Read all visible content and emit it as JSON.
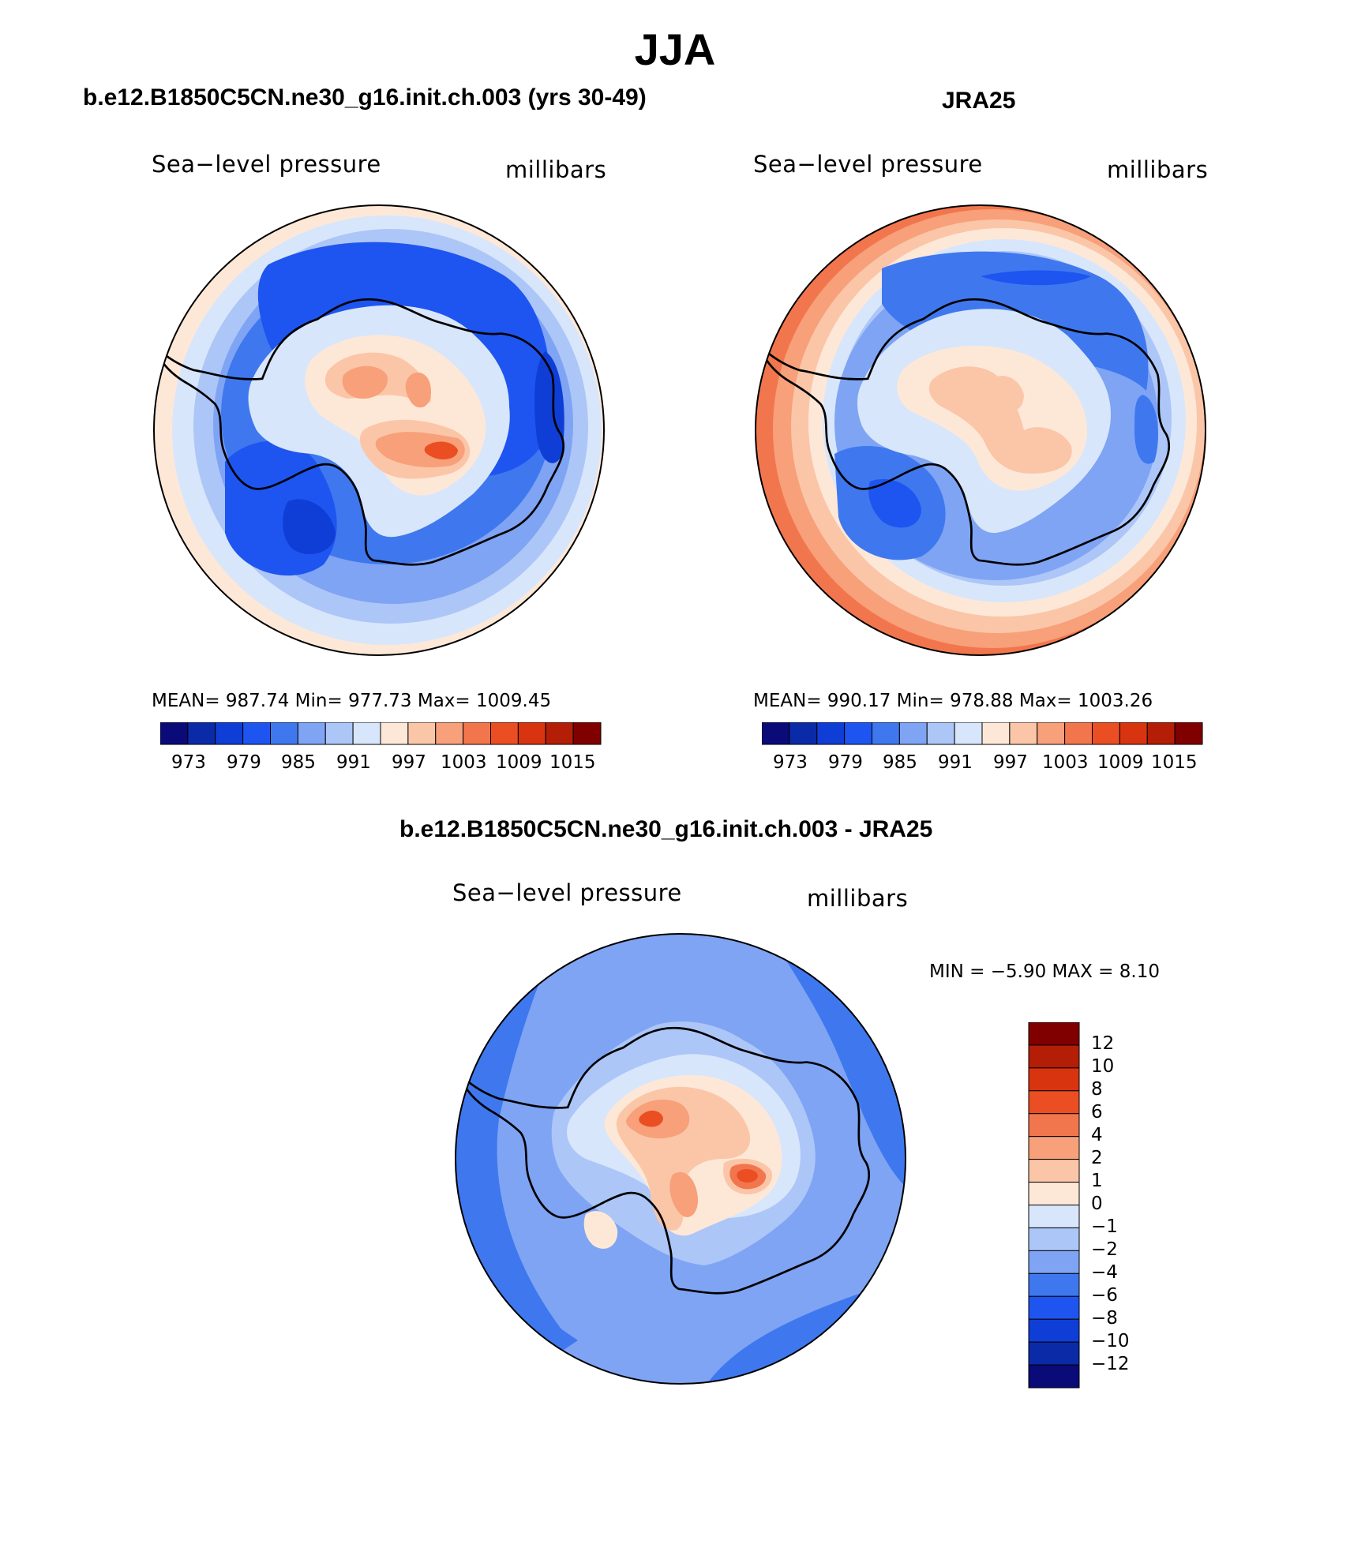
{
  "title": "JJA",
  "panels": {
    "model": {
      "title": "b.e12.B1850C5CN.ne30_g16.init.ch.003 (yrs 30-49)",
      "left_label": "Sea−level pressure",
      "right_label": "millibars",
      "stats": "MEAN=  987.74   Min=  977.73   Max=  1009.45"
    },
    "obs": {
      "title": "JRA25",
      "left_label": "Sea−level pressure",
      "right_label": "millibars",
      "stats": "MEAN=  990.17   Min=  978.88   Max=  1003.26"
    },
    "diff": {
      "title": "b.e12.B1850C5CN.ne30_g16.init.ch.003 - JRA25",
      "left_label": "Sea−level pressure",
      "right_label": "millibars",
      "minmax": "MIN =   −5.90  MAX =    8.10"
    }
  },
  "colorbar_abs": {
    "colors": [
      "#0a0a78",
      "#0b2aa8",
      "#0f3ed6",
      "#1e55f0",
      "#3f78ee",
      "#7fa4f4",
      "#adc6f8",
      "#d8e6fb",
      "#fde8d8",
      "#fbc6a8",
      "#f7a07a",
      "#f2764d",
      "#ea4e22",
      "#d83410",
      "#b41e06",
      "#800000"
    ],
    "labels": [
      "973",
      "979",
      "985",
      "991",
      "997",
      "1003",
      "1009",
      "1015"
    ]
  },
  "colorbar_diff": {
    "colors": [
      "#800000",
      "#b41e06",
      "#d83410",
      "#ea4e22",
      "#f2764d",
      "#f7a07a",
      "#fbc6a8",
      "#fde8d8",
      "#d8e6fb",
      "#adc6f8",
      "#7fa4f4",
      "#3f78ee",
      "#1e55f0",
      "#0f3ed6",
      "#0b2aa8",
      "#0a0a78"
    ],
    "labels": [
      "12",
      "10",
      "8",
      "6",
      "4",
      "2",
      "1",
      "0",
      "−1",
      "−2",
      "−4",
      "−6",
      "−8",
      "−10",
      "−12"
    ]
  }
}
